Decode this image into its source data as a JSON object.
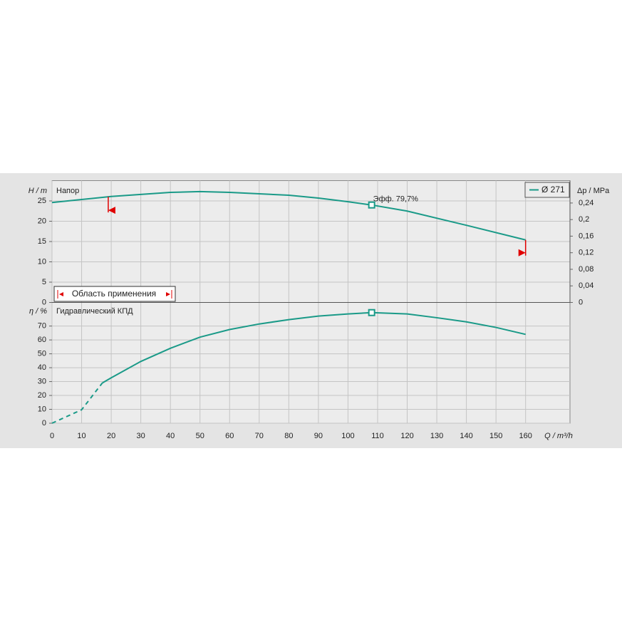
{
  "chart_data": [
    {
      "type": "line",
      "title": "Напор",
      "ylabel": "H / m",
      "y2label": "Δp / MPa",
      "xlim": [
        0,
        175
      ],
      "ylim": [
        0,
        30
      ],
      "yticks": [
        0,
        5,
        10,
        15,
        20,
        25
      ],
      "y2lim": [
        0,
        0.294
      ],
      "y2ticks": [
        0,
        {
          "value": 0.04,
          "label": "0,04"
        },
        {
          "value": 0.08,
          "label": "0,08"
        },
        {
          "value": 0.12,
          "label": "0,12"
        },
        {
          "value": 0.16,
          "label": "0,16"
        },
        {
          "value": 0.2,
          "label": "0,2"
        },
        {
          "value": 0.24,
          "label": "0,24"
        }
      ],
      "legend": "top-right",
      "grid": true,
      "series": [
        {
          "name": "Ø 271",
          "color": "#1a9a88",
          "x": [
            0,
            20,
            40,
            50,
            60,
            80,
            90,
            100,
            108,
            120,
            140,
            160
          ],
          "values": [
            24.6,
            26.1,
            27.1,
            27.3,
            27.1,
            26.4,
            25.7,
            24.8,
            24,
            22.5,
            19,
            15.4
          ]
        }
      ],
      "annotation": {
        "text": "Эфф.  79,7%",
        "x": 108,
        "y": 24
      },
      "range_label": "Область применения",
      "range_color": "#e00000",
      "range": [
        19,
        160
      ]
    },
    {
      "type": "line",
      "title": "Гидравлический КПД",
      "ylabel": "η / %",
      "xlabel": "Q / m³/h",
      "xlim": [
        0,
        175
      ],
      "xticks": [
        0,
        10,
        20,
        30,
        40,
        50,
        60,
        70,
        80,
        90,
        100,
        110,
        120,
        130,
        140,
        150,
        160
      ],
      "ylim": [
        0,
        87
      ],
      "yticks": [
        0,
        10,
        20,
        30,
        40,
        50,
        60,
        70
      ],
      "grid": true,
      "series": [
        {
          "color": "#1a9a88",
          "style": "dashed",
          "x": [
            0,
            10,
            17
          ],
          "values": [
            0,
            9.7,
            29
          ]
        },
        {
          "color": "#1a9a88",
          "style": "solid",
          "x": [
            17,
            20,
            30,
            40,
            50,
            60,
            70,
            80,
            90,
            100,
            108,
            120,
            130,
            140,
            150,
            160
          ],
          "values": [
            29,
            32.7,
            44.5,
            54,
            62,
            67.5,
            71.5,
            74.6,
            77.2,
            78.7,
            79.7,
            78.7,
            76,
            73,
            69,
            64
          ]
        }
      ],
      "marker": {
        "x": 108,
        "y": 79.7
      }
    }
  ]
}
